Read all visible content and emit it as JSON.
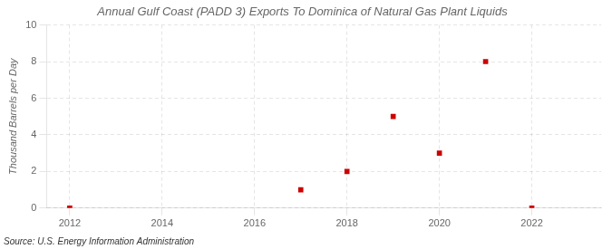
{
  "chart_data": {
    "type": "scatter",
    "title": "Annual Gulf Coast (PADD 3) Exports To Dominica of Natural Gas Plant Liquids",
    "y_label": "Thousand Barrels per Day",
    "annotations": [
      "Source: U.S. Energy Information Administration"
    ],
    "x": [
      2012,
      2017,
      2018,
      2019,
      2020,
      2021,
      2022
    ],
    "values": [
      0,
      1,
      2,
      5,
      3,
      8,
      0
    ],
    "color": "#cc0000",
    "marker": "square",
    "xlim": [
      2011.5,
      2023.5
    ],
    "ylim": [
      0,
      10
    ],
    "xticks": [
      2012,
      2014,
      2016,
      2018,
      2020,
      2022
    ],
    "yticks": [
      0,
      2,
      4,
      6,
      8,
      10
    ],
    "grid": true
  }
}
